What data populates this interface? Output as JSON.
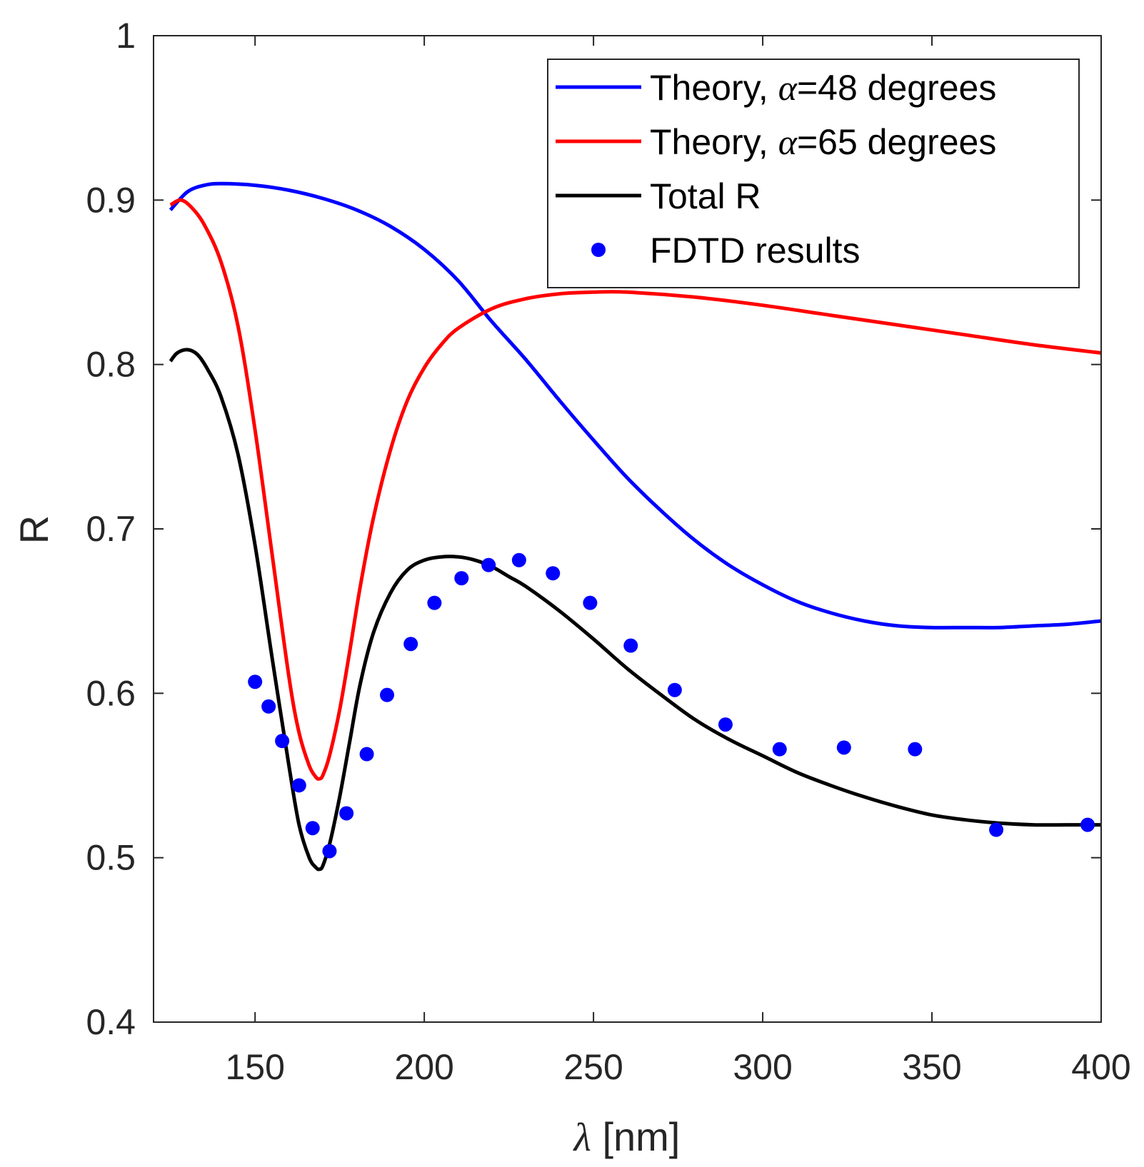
{
  "chart_data": {
    "type": "line",
    "title": "",
    "xlabel": "λ [nm]",
    "ylabel": "R",
    "xlim": [
      120,
      400
    ],
    "ylim": [
      0.4,
      1.0
    ],
    "xticks": [
      150,
      200,
      250,
      300,
      350,
      400
    ],
    "yticks": [
      0.4,
      0.5,
      0.6,
      0.7,
      0.8,
      0.9,
      1.0
    ],
    "xtick_labels": [
      "150",
      "200",
      "250",
      "300",
      "350",
      "400"
    ],
    "ytick_labels": [
      "0.4",
      "0.5",
      "0.6",
      "0.7",
      "0.8",
      "0.9",
      "1"
    ],
    "grid": false,
    "legend_position": "top-right",
    "series": [
      {
        "name": "Theory, α=48 degrees",
        "legend_prefix": "Theory, ",
        "legend_symbol": "α",
        "legend_suffix": "=48 degrees",
        "kind": "line",
        "color": "#0000ff",
        "x": [
          125,
          130,
          135,
          140,
          150,
          160,
          170,
          180,
          190,
          200,
          210,
          220,
          230,
          240,
          250,
          260,
          270,
          280,
          290,
          300,
          310,
          320,
          330,
          340,
          350,
          360,
          370,
          380,
          390,
          400
        ],
        "y": [
          0.894,
          0.905,
          0.909,
          0.91,
          0.909,
          0.906,
          0.901,
          0.894,
          0.884,
          0.87,
          0.851,
          0.826,
          0.803,
          0.778,
          0.754,
          0.731,
          0.711,
          0.693,
          0.678,
          0.666,
          0.656,
          0.649,
          0.644,
          0.641,
          0.64,
          0.64,
          0.64,
          0.641,
          0.642,
          0.644
        ]
      },
      {
        "name": "Theory, α=65 degrees",
        "legend_prefix": "Theory, ",
        "legend_symbol": "α",
        "legend_suffix": "=65 degrees",
        "kind": "line",
        "color": "#ff0000",
        "x": [
          125,
          128,
          131,
          135,
          140,
          145,
          150,
          155,
          160,
          163,
          166,
          168,
          169,
          170,
          172,
          175,
          178,
          181,
          185,
          190,
          195,
          200,
          205,
          210,
          220,
          230,
          240,
          250,
          260,
          280,
          300,
          320,
          340,
          360,
          380,
          400
        ],
        "y": [
          0.897,
          0.9,
          0.896,
          0.885,
          0.862,
          0.823,
          0.76,
          0.685,
          0.61,
          0.576,
          0.556,
          0.549,
          0.548,
          0.55,
          0.562,
          0.59,
          0.626,
          0.664,
          0.707,
          0.748,
          0.778,
          0.798,
          0.812,
          0.822,
          0.834,
          0.84,
          0.843,
          0.844,
          0.844,
          0.841,
          0.836,
          0.83,
          0.824,
          0.818,
          0.812,
          0.807
        ]
      },
      {
        "name": "Total R",
        "legend_prefix": "Total R",
        "legend_symbol": "",
        "legend_suffix": "",
        "kind": "line",
        "color": "#000000",
        "x": [
          125,
          127,
          130,
          133,
          136,
          140,
          145,
          150,
          155,
          160,
          163,
          166,
          168,
          169,
          170,
          172,
          175,
          178,
          181,
          185,
          190,
          195,
          200,
          205,
          210,
          215,
          220,
          225,
          230,
          240,
          250,
          260,
          270,
          280,
          290,
          300,
          310,
          320,
          330,
          340,
          350,
          360,
          370,
          380,
          390,
          400
        ],
        "y": [
          0.802,
          0.807,
          0.809,
          0.806,
          0.797,
          0.78,
          0.745,
          0.69,
          0.622,
          0.556,
          0.52,
          0.5,
          0.494,
          0.493,
          0.495,
          0.508,
          0.537,
          0.571,
          0.605,
          0.637,
          0.661,
          0.675,
          0.681,
          0.683,
          0.683,
          0.681,
          0.677,
          0.671,
          0.665,
          0.65,
          0.633,
          0.615,
          0.599,
          0.584,
          0.572,
          0.562,
          0.552,
          0.544,
          0.537,
          0.531,
          0.526,
          0.523,
          0.521,
          0.52,
          0.52,
          0.52
        ]
      },
      {
        "name": "FDTD results",
        "legend_prefix": "FDTD results",
        "legend_symbol": "",
        "legend_suffix": "",
        "kind": "scatter",
        "color": "#0000ff",
        "x": [
          150,
          154,
          158,
          163,
          167,
          172,
          177,
          183,
          189,
          196,
          203,
          211,
          219,
          228,
          238,
          249,
          261,
          274,
          289,
          305,
          324,
          345,
          369,
          396
        ],
        "y": [
          0.607,
          0.592,
          0.571,
          0.544,
          0.518,
          0.504,
          0.527,
          0.563,
          0.599,
          0.63,
          0.655,
          0.67,
          0.678,
          0.681,
          0.673,
          0.655,
          0.629,
          0.602,
          0.581,
          0.566,
          0.567,
          0.566,
          0.517,
          0.52
        ]
      }
    ]
  }
}
